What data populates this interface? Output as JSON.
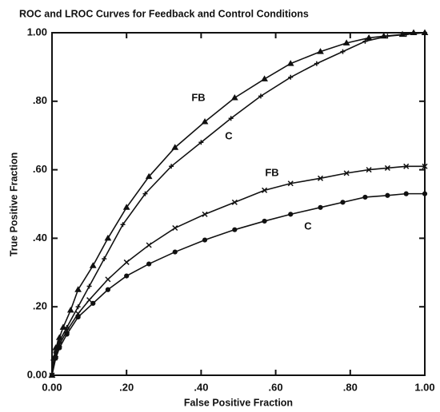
{
  "chart_data": {
    "type": "line",
    "title": "ROC and LROC Curves for Feedback and Control Conditions",
    "xlabel": "False Positive Fraction",
    "ylabel": "True Positive Fraction",
    "xlim": [
      0,
      1
    ],
    "ylim": [
      0,
      1
    ],
    "xticks": [
      {
        "value": 0,
        "label": "0.00"
      },
      {
        "value": 0.2,
        "label": ".20"
      },
      {
        "value": 0.4,
        "label": ".40"
      },
      {
        "value": 0.6,
        "label": ".60"
      },
      {
        "value": 0.8,
        "label": ".80"
      },
      {
        "value": 1,
        "label": "1.00"
      }
    ],
    "yticks": [
      {
        "value": 0,
        "label": "0.00"
      },
      {
        "value": 0.2,
        "label": ".20"
      },
      {
        "value": 0.4,
        "label": ".40"
      },
      {
        "value": 0.6,
        "label": ".60"
      },
      {
        "value": 0.8,
        "label": ".80"
      },
      {
        "value": 1,
        "label": "1.00"
      }
    ],
    "grid": false,
    "series": [
      {
        "name": "FB",
        "color": "#111111",
        "x": [
          0,
          0.005,
          0.01,
          0.02,
          0.03,
          0.05,
          0.07,
          0.11,
          0.15,
          0.2,
          0.26,
          0.33,
          0.41,
          0.49,
          0.57,
          0.64,
          0.72,
          0.79,
          0.85,
          0.89,
          0.94,
          0.97,
          1.0
        ],
        "values": [
          0,
          0.05,
          0.08,
          0.11,
          0.14,
          0.19,
          0.25,
          0.32,
          0.4,
          0.49,
          0.58,
          0.665,
          0.74,
          0.81,
          0.865,
          0.91,
          0.945,
          0.97,
          0.985,
          0.99,
          0.995,
          1.0,
          1.0
        ]
      },
      {
        "name": "C",
        "color": "#111111",
        "x": [
          0,
          0.01,
          0.02,
          0.04,
          0.07,
          0.1,
          0.14,
          0.19,
          0.25,
          0.32,
          0.4,
          0.48,
          0.56,
          0.64,
          0.71,
          0.78,
          0.84,
          0.9,
          0.95,
          1.0
        ],
        "values": [
          0,
          0.07,
          0.1,
          0.14,
          0.2,
          0.26,
          0.34,
          0.44,
          0.53,
          0.61,
          0.68,
          0.75,
          0.815,
          0.87,
          0.91,
          0.945,
          0.975,
          0.99,
          0.995,
          1.0
        ]
      },
      {
        "name": "FB",
        "color": "#111111",
        "x": [
          0,
          0.01,
          0.02,
          0.04,
          0.07,
          0.1,
          0.15,
          0.2,
          0.26,
          0.33,
          0.41,
          0.49,
          0.57,
          0.64,
          0.72,
          0.79,
          0.85,
          0.9,
          0.95,
          1.0
        ],
        "values": [
          0,
          0.06,
          0.09,
          0.13,
          0.18,
          0.22,
          0.28,
          0.33,
          0.38,
          0.43,
          0.47,
          0.505,
          0.54,
          0.56,
          0.575,
          0.59,
          0.6,
          0.605,
          0.61,
          0.61
        ]
      },
      {
        "name": "C",
        "color": "#111111",
        "x": [
          0,
          0.01,
          0.02,
          0.04,
          0.07,
          0.11,
          0.15,
          0.2,
          0.26,
          0.33,
          0.41,
          0.49,
          0.57,
          0.64,
          0.72,
          0.78,
          0.84,
          0.9,
          0.95,
          1.0
        ],
        "values": [
          0,
          0.05,
          0.08,
          0.12,
          0.17,
          0.21,
          0.25,
          0.29,
          0.325,
          0.36,
          0.395,
          0.425,
          0.45,
          0.47,
          0.49,
          0.505,
          0.52,
          0.525,
          0.53,
          0.53
        ]
      }
    ]
  }
}
